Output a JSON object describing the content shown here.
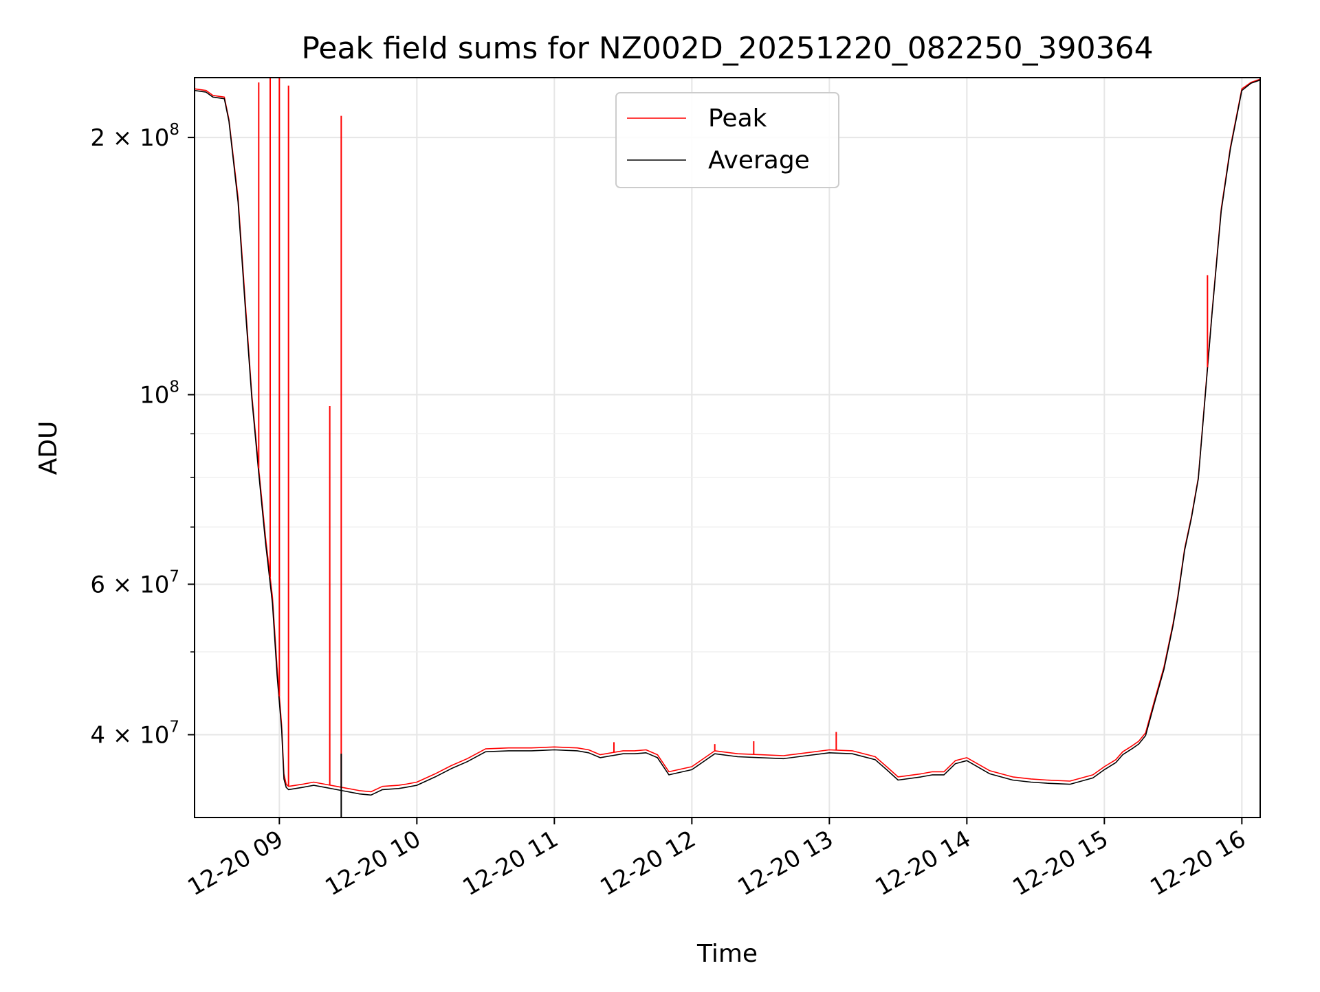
{
  "chart_data": {
    "type": "line",
    "title": "Peak field sums for NZ002D_20251220_082250_390364",
    "xlabel": "Time",
    "ylabel": "ADU",
    "yscale": "log",
    "xlim": [
      "2025-12-20T08:23:00",
      "2025-12-20T16:08:00"
    ],
    "ylim": [
      32000000,
      235000000
    ],
    "grid": true,
    "legend": "upper center",
    "x_ticks": [
      {
        "value": "2025-12-20T09:00:00",
        "label": "12-20 09"
      },
      {
        "value": "2025-12-20T10:00:00",
        "label": "12-20 10"
      },
      {
        "value": "2025-12-20T11:00:00",
        "label": "12-20 11"
      },
      {
        "value": "2025-12-20T12:00:00",
        "label": "12-20 12"
      },
      {
        "value": "2025-12-20T13:00:00",
        "label": "12-20 13"
      },
      {
        "value": "2025-12-20T14:00:00",
        "label": "12-20 14"
      },
      {
        "value": "2025-12-20T15:00:00",
        "label": "12-20 15"
      },
      {
        "value": "2025-12-20T16:00:00",
        "label": "12-20 16"
      }
    ],
    "y_ticks": [
      {
        "value": 40000000,
        "base": "4 × 10",
        "exp": "7"
      },
      {
        "value": 60000000,
        "base": "6 × 10",
        "exp": "7"
      },
      {
        "value": 100000000,
        "base": "10",
        "exp": "8"
      },
      {
        "value": 200000000,
        "base": "2 × 10",
        "exp": "8"
      }
    ],
    "y_minor_ticks": [
      50000000,
      70000000,
      80000000,
      90000000
    ],
    "average_spikes": [
      {
        "x": "2025-12-20T09:27:00",
        "y": 38000000
      }
    ],
    "series": [
      {
        "name": "Peak",
        "color": "#ff0000",
        "x": [
          "2025-12-20T08:23:00",
          "2025-12-20T08:28:00",
          "2025-12-20T08:31:00",
          "2025-12-20T08:36:00",
          "2025-12-20T08:38:00",
          "2025-12-20T08:42:00",
          "2025-12-20T08:45:00",
          "2025-12-20T08:48:00",
          "2025-12-20T08:51:00",
          "2025-12-20T08:54:00",
          "2025-12-20T08:57:00",
          "2025-12-20T08:59:00",
          "2025-12-20T09:01:00",
          "2025-12-20T09:02:00",
          "2025-12-20T09:03:00",
          "2025-12-20T09:04:00",
          "2025-12-20T09:10:00",
          "2025-12-20T09:15:00",
          "2025-12-20T09:20:00",
          "2025-12-20T09:25:00",
          "2025-12-20T09:30:00",
          "2025-12-20T09:35:00",
          "2025-12-20T09:40:00",
          "2025-12-20T09:45:00",
          "2025-12-20T09:52:00",
          "2025-12-20T09:55:00",
          "2025-12-20T10:00:00",
          "2025-12-20T10:08:00",
          "2025-12-20T10:15:00",
          "2025-12-20T10:22:00",
          "2025-12-20T10:30:00",
          "2025-12-20T10:40:00",
          "2025-12-20T10:50:00",
          "2025-12-20T11:00:00",
          "2025-12-20T11:10:00",
          "2025-12-20T11:15:00",
          "2025-12-20T11:20:00",
          "2025-12-20T11:30:00",
          "2025-12-20T11:35:00",
          "2025-12-20T11:40:00",
          "2025-12-20T11:45:00",
          "2025-12-20T11:50:00",
          "2025-12-20T12:00:00",
          "2025-12-20T12:10:00",
          "2025-12-20T12:20:00",
          "2025-12-20T12:30:00",
          "2025-12-20T12:40:00",
          "2025-12-20T12:50:00",
          "2025-12-20T13:00:00",
          "2025-12-20T13:10:00",
          "2025-12-20T13:20:00",
          "2025-12-20T13:25:00",
          "2025-12-20T13:30:00",
          "2025-12-20T13:40:00",
          "2025-12-20T13:45:00",
          "2025-12-20T13:50:00",
          "2025-12-20T13:55:00",
          "2025-12-20T14:00:00",
          "2025-12-20T14:10:00",
          "2025-12-20T14:20:00",
          "2025-12-20T14:28:00",
          "2025-12-20T14:35:00",
          "2025-12-20T14:45:00",
          "2025-12-20T14:55:00",
          "2025-12-20T15:00:00",
          "2025-12-20T15:05:00",
          "2025-12-20T15:08:00",
          "2025-12-20T15:12:00",
          "2025-12-20T15:15:00",
          "2025-12-20T15:18:00",
          "2025-12-20T15:22:00",
          "2025-12-20T15:26:00",
          "2025-12-20T15:30:00",
          "2025-12-20T15:32:00",
          "2025-12-20T15:35:00",
          "2025-12-20T15:38:00",
          "2025-12-20T15:41:00",
          "2025-12-20T15:44:00",
          "2025-12-20T15:47:00",
          "2025-12-20T15:51:00",
          "2025-12-20T15:55:00",
          "2025-12-20T16:00:00",
          "2025-12-20T16:04:00",
          "2025-12-20T16:08:00"
        ],
        "y": [
          228000000,
          227000000,
          224000000,
          223000000,
          210000000,
          170000000,
          130000000,
          100000000,
          82000000,
          68000000,
          58000000,
          48000000,
          41000000,
          36000000,
          35000000,
          34800000,
          35000000,
          35200000,
          35000000,
          34800000,
          34600000,
          34400000,
          34300000,
          34800000,
          34900000,
          35000000,
          35200000,
          36000000,
          36800000,
          37500000,
          38500000,
          38600000,
          38600000,
          38700000,
          38600000,
          38400000,
          37900000,
          38300000,
          38300000,
          38400000,
          37900000,
          36200000,
          36700000,
          38300000,
          38000000,
          37900000,
          37800000,
          38100000,
          38400000,
          38300000,
          37700000,
          36700000,
          35700000,
          36000000,
          36200000,
          36200000,
          37300000,
          37600000,
          36300000,
          35700000,
          35500000,
          35400000,
          35300000,
          35900000,
          36700000,
          37400000,
          38200000,
          38800000,
          39300000,
          40200000,
          44000000,
          48000000,
          54000000,
          58000000,
          66000000,
          72000000,
          80000000,
          100000000,
          125000000,
          165000000,
          195000000,
          228000000,
          232000000,
          234000000
        ]
      },
      {
        "name": "Average",
        "color": "#000000",
        "x": [
          "2025-12-20T08:23:00",
          "2025-12-20T08:28:00",
          "2025-12-20T08:31:00",
          "2025-12-20T08:36:00",
          "2025-12-20T08:38:00",
          "2025-12-20T08:42:00",
          "2025-12-20T08:45:00",
          "2025-12-20T08:48:00",
          "2025-12-20T08:51:00",
          "2025-12-20T08:54:00",
          "2025-12-20T08:57:00",
          "2025-12-20T08:59:00",
          "2025-12-20T09:01:00",
          "2025-12-20T09:02:00",
          "2025-12-20T09:03:00",
          "2025-12-20T09:04:00",
          "2025-12-20T09:10:00",
          "2025-12-20T09:15:00",
          "2025-12-20T09:20:00",
          "2025-12-20T09:25:00",
          "2025-12-20T09:30:00",
          "2025-12-20T09:35:00",
          "2025-12-20T09:40:00",
          "2025-12-20T09:45:00",
          "2025-12-20T09:52:00",
          "2025-12-20T09:55:00",
          "2025-12-20T10:00:00",
          "2025-12-20T10:08:00",
          "2025-12-20T10:15:00",
          "2025-12-20T10:22:00",
          "2025-12-20T10:30:00",
          "2025-12-20T10:40:00",
          "2025-12-20T10:50:00",
          "2025-12-20T11:00:00",
          "2025-12-20T11:10:00",
          "2025-12-20T11:15:00",
          "2025-12-20T11:20:00",
          "2025-12-20T11:30:00",
          "2025-12-20T11:35:00",
          "2025-12-20T11:40:00",
          "2025-12-20T11:45:00",
          "2025-12-20T11:50:00",
          "2025-12-20T12:00:00",
          "2025-12-20T12:10:00",
          "2025-12-20T12:20:00",
          "2025-12-20T12:30:00",
          "2025-12-20T12:40:00",
          "2025-12-20T12:50:00",
          "2025-12-20T13:00:00",
          "2025-12-20T13:10:00",
          "2025-12-20T13:20:00",
          "2025-12-20T13:25:00",
          "2025-12-20T13:30:00",
          "2025-12-20T13:40:00",
          "2025-12-20T13:45:00",
          "2025-12-20T13:50:00",
          "2025-12-20T13:55:00",
          "2025-12-20T14:00:00",
          "2025-12-20T14:10:00",
          "2025-12-20T14:20:00",
          "2025-12-20T14:28:00",
          "2025-12-20T14:35:00",
          "2025-12-20T14:45:00",
          "2025-12-20T14:55:00",
          "2025-12-20T15:00:00",
          "2025-12-20T15:05:00",
          "2025-12-20T15:08:00",
          "2025-12-20T15:12:00",
          "2025-12-20T15:15:00",
          "2025-12-20T15:18:00",
          "2025-12-20T15:22:00",
          "2025-12-20T15:26:00",
          "2025-12-20T15:30:00",
          "2025-12-20T15:32:00",
          "2025-12-20T15:35:00",
          "2025-12-20T15:38:00",
          "2025-12-20T15:41:00",
          "2025-12-20T15:44:00",
          "2025-12-20T15:47:00",
          "2025-12-20T15:51:00",
          "2025-12-20T15:55:00",
          "2025-12-20T16:00:00",
          "2025-12-20T16:04:00",
          "2025-12-20T16:08:00"
        ],
        "y": [
          227000000,
          226000000,
          223000000,
          222000000,
          209000000,
          168000000,
          128000000,
          99000000,
          81000000,
          67000000,
          57000000,
          47000000,
          40500000,
          35500000,
          34700000,
          34500000,
          34700000,
          34900000,
          34700000,
          34500000,
          34300000,
          34100000,
          34000000,
          34500000,
          34600000,
          34700000,
          34900000,
          35700000,
          36500000,
          37200000,
          38200000,
          38300000,
          38300000,
          38400000,
          38300000,
          38100000,
          37600000,
          38000000,
          38000000,
          38100000,
          37600000,
          35900000,
          36400000,
          38000000,
          37700000,
          37600000,
          37500000,
          37800000,
          38100000,
          38000000,
          37400000,
          36400000,
          35400000,
          35700000,
          35900000,
          35900000,
          37000000,
          37300000,
          36000000,
          35400000,
          35200000,
          35100000,
          35000000,
          35600000,
          36400000,
          37100000,
          37900000,
          38500000,
          39000000,
          39900000,
          43700000,
          47700000,
          53700000,
          57700000,
          65700000,
          71700000,
          79700000,
          99500000,
          124500000,
          164000000,
          194000000,
          227000000,
          231500000,
          233500000
        ]
      }
    ],
    "peak_spikes": [
      {
        "x": "2025-12-20T08:51:00",
        "y": 232000000
      },
      {
        "x": "2025-12-20T08:56:00",
        "y": 235000000
      },
      {
        "x": "2025-12-20T09:00:00",
        "y": 235000000
      },
      {
        "x": "2025-12-20T09:04:00",
        "y": 230000000
      },
      {
        "x": "2025-12-20T09:22:00",
        "y": 97000000
      },
      {
        "x": "2025-12-20T09:27:00",
        "y": 212000000
      },
      {
        "x": "2025-12-20T11:26:00",
        "y": 39200000
      },
      {
        "x": "2025-12-20T12:10:00",
        "y": 39000000
      },
      {
        "x": "2025-12-20T12:27:00",
        "y": 39300000
      },
      {
        "x": "2025-12-20T13:03:00",
        "y": 40300000
      },
      {
        "x": "2025-12-20T15:45:00",
        "y": 138000000
      }
    ]
  }
}
